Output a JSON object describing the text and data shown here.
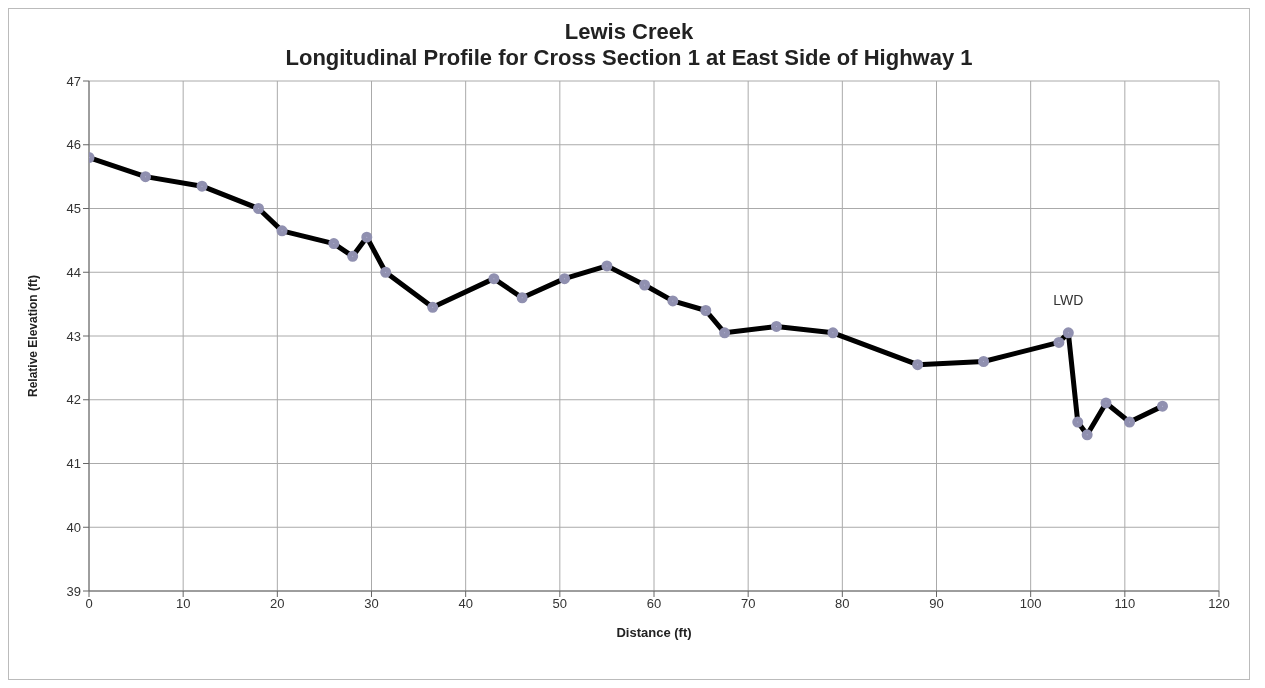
{
  "chart_data": {
    "type": "line",
    "title": "Lewis Creek",
    "subtitle": "Longitudinal Profile for Cross Section 1 at East Side of Highway 1",
    "xlabel": "Distance (ft)",
    "ylabel": "Relative Elevation (ft)",
    "x": [
      0,
      6,
      12,
      18,
      20.5,
      26,
      28,
      29.5,
      31.5,
      36.5,
      43,
      46,
      50.5,
      55,
      59,
      62,
      65.5,
      67.5,
      73,
      79,
      88,
      95,
      103,
      104,
      105,
      106,
      108,
      110.5,
      114
    ],
    "series": [
      {
        "color": "#000000",
        "values": [
          45.8,
          45.5,
          45.35,
          45.0,
          44.65,
          44.45,
          44.25,
          44.55,
          44.0,
          43.45,
          43.9,
          43.6,
          43.9,
          44.1,
          43.8,
          43.55,
          43.4,
          43.05,
          43.15,
          43.05,
          42.55,
          42.6,
          42.9,
          43.05,
          41.65,
          41.45,
          41.95,
          41.65,
          41.9
        ]
      }
    ],
    "xlim": [
      0,
      120
    ],
    "xticks": [
      0,
      10,
      20,
      30,
      40,
      50,
      60,
      70,
      80,
      90,
      100,
      110,
      120
    ],
    "ylim": [
      39,
      47
    ],
    "yticks": [
      39,
      40,
      41,
      42,
      43,
      44,
      45,
      46,
      47
    ],
    "grid": true,
    "marker": "circle",
    "line_style": "solid",
    "annotations": [
      {
        "text": "LWD",
        "x": 104,
        "y": 43.05
      }
    ]
  }
}
